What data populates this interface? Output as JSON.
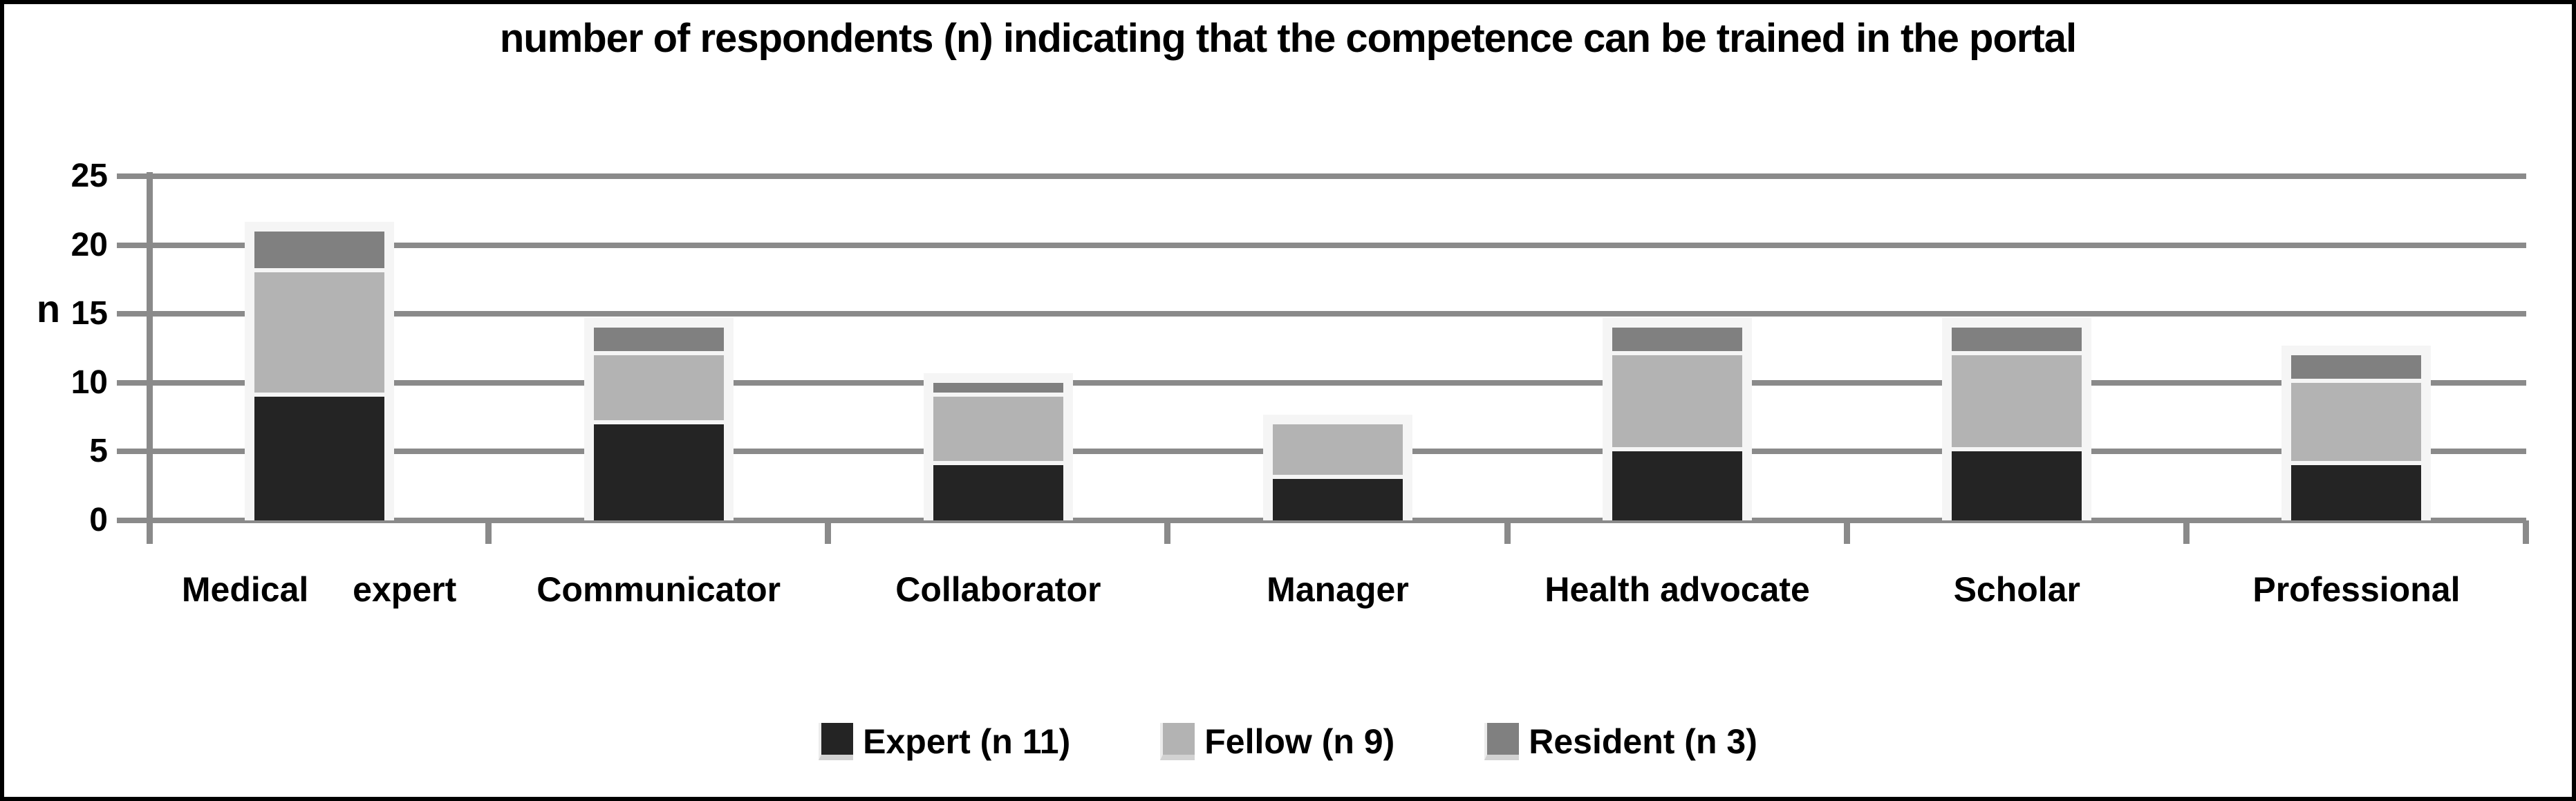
{
  "chart_data": {
    "type": "bar",
    "stacked": true,
    "title": "number of respondents (n) indicating that the competence can be trained in the portal",
    "ylabel": "n",
    "categories": [
      "Medical  expert",
      "Communicator",
      "Collaborator",
      "Manager",
      "Health advocate",
      "Scholar",
      "Professional"
    ],
    "series": [
      {
        "name": "Expert (n 11)",
        "color": "#242424",
        "values": [
          9,
          7,
          4,
          3,
          5,
          5,
          4
        ]
      },
      {
        "name": "Fellow (n 9)",
        "color": "#b3b3b3",
        "values": [
          9,
          5,
          5,
          4,
          7,
          7,
          6
        ]
      },
      {
        "name": "Resident (n 3)",
        "color": "#808080",
        "values": [
          3,
          2,
          1,
          0,
          2,
          2,
          2
        ]
      }
    ],
    "totals": [
      21,
      14,
      10,
      7,
      14,
      14,
      12
    ],
    "ylim": [
      0,
      25
    ],
    "yticks": [
      0,
      5,
      10,
      15,
      20,
      25
    ],
    "grid": true,
    "grid_color": "#8a8a8a",
    "bar_frame_color": "#f5f5f5",
    "legend_position": "bottom"
  }
}
